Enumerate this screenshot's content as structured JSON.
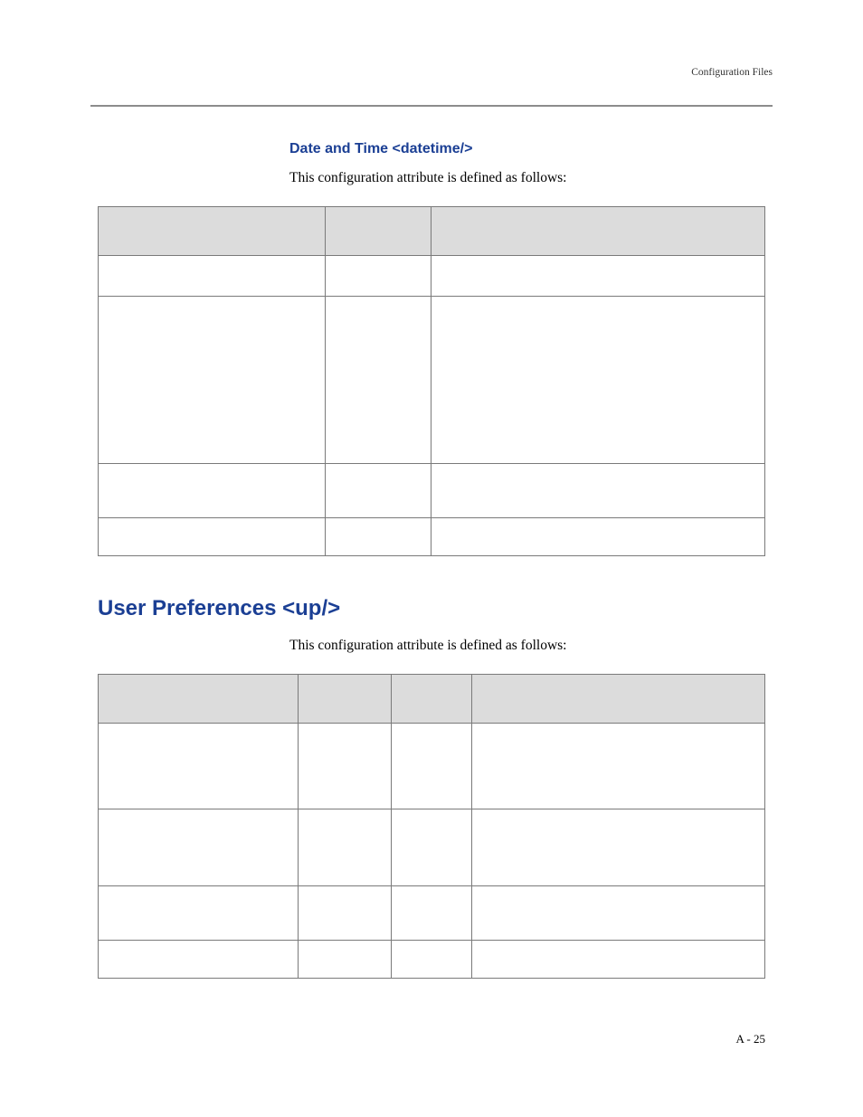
{
  "header": {
    "label": "Configuration Files"
  },
  "section1": {
    "heading": "Date and Time <datetime/>",
    "intro": "This configuration attribute is defined as follows:",
    "columns": [
      "",
      "",
      ""
    ],
    "rows": [
      [
        "",
        "",
        ""
      ],
      [
        "",
        "",
        ""
      ],
      [
        "",
        "",
        ""
      ],
      [
        "",
        "",
        ""
      ]
    ]
  },
  "section2": {
    "heading": "User Preferences <up/>",
    "intro": "This configuration attribute is defined as follows:",
    "columns": [
      "",
      "",
      "",
      ""
    ],
    "rows": [
      [
        "",
        "",
        "",
        ""
      ],
      [
        "",
        "",
        "",
        ""
      ],
      [
        "",
        "",
        "",
        ""
      ],
      [
        "",
        "",
        "",
        ""
      ]
    ]
  },
  "footer": {
    "page": "A - 25"
  }
}
